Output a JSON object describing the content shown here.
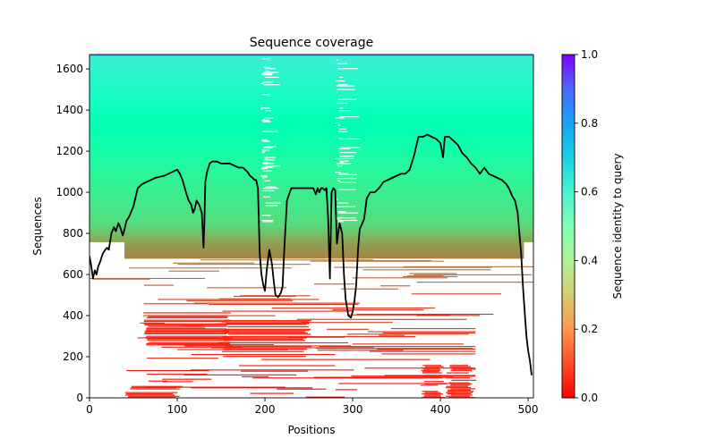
{
  "chart_data": {
    "type": "heatmap",
    "title": "Sequence coverage",
    "xlabel": "Positions",
    "ylabel": "Sequences",
    "xlim": [
      0,
      506
    ],
    "ylim": [
      0,
      1670
    ],
    "xticks": [
      "0",
      "100",
      "200",
      "300",
      "400",
      "500"
    ],
    "xtick_values": [
      0,
      100,
      200,
      300,
      400,
      500
    ],
    "yticks": [
      "0",
      "200",
      "400",
      "600",
      "800",
      "1000",
      "1200",
      "1400",
      "1600"
    ],
    "ytick_values": [
      0,
      200,
      400,
      600,
      800,
      1000,
      1200,
      1400,
      1600
    ],
    "grid": false,
    "colorbar": {
      "label": "Sequence identity to query",
      "colormap": "rainbow_r",
      "range": [
        0.0,
        1.0
      ],
      "ticks": [
        "0.0",
        "0.2",
        "0.4",
        "0.6",
        "0.8",
        "1.0"
      ],
      "tick_values": [
        0.0,
        0.2,
        0.4,
        0.6,
        0.8,
        1.0
      ]
    },
    "bands": [
      {
        "name": "high-identity-block",
        "seq_range": [
          850,
          1670
        ],
        "identity_range": [
          0.33,
          0.62
        ],
        "pos_range": [
          0,
          506
        ]
      },
      {
        "name": "mid-identity-block",
        "seq_range": [
          760,
          850
        ],
        "identity_range": [
          0.22,
          0.33
        ],
        "pos_range": [
          0,
          506
        ]
      },
      {
        "name": "orange-block",
        "seq_range": [
          680,
          760
        ],
        "identity_range": [
          0.17,
          0.22
        ],
        "pos_range": [
          40,
          495
        ]
      },
      {
        "name": "low-identity-sparse",
        "seq_range": [
          400,
          680
        ],
        "identity_range": [
          0.05,
          0.17
        ],
        "pos_range": [
          0,
          506
        ]
      },
      {
        "name": "red-fragments",
        "seq_range": [
          0,
          400
        ],
        "identity_range": [
          0.0,
          0.08
        ],
        "pos_range": [
          40,
          440
        ]
      }
    ],
    "coverage_line": {
      "name": "coverage",
      "color": "#000000",
      "x": [
        0,
        2,
        4,
        6,
        8,
        10,
        12,
        15,
        18,
        20,
        22,
        25,
        28,
        30,
        33,
        35,
        38,
        40,
        42,
        45,
        50,
        55,
        60,
        65,
        70,
        75,
        80,
        85,
        90,
        95,
        100,
        103,
        106,
        110,
        113,
        116,
        118,
        120,
        122,
        125,
        128,
        130,
        131,
        132,
        134,
        137,
        140,
        145,
        150,
        160,
        170,
        175,
        180,
        183,
        186,
        188,
        190,
        192,
        194,
        196,
        198,
        200,
        202,
        205,
        208,
        210,
        212,
        215,
        218,
        220,
        222,
        225,
        230,
        235,
        240,
        245,
        250,
        255,
        258,
        260,
        262,
        264,
        266,
        268,
        270,
        272,
        274,
        276,
        278,
        280,
        282,
        285,
        288,
        290,
        292,
        295,
        298,
        300,
        302,
        304,
        306,
        308,
        310,
        313,
        316,
        320,
        325,
        330,
        335,
        340,
        345,
        350,
        355,
        360,
        365,
        370,
        375,
        380,
        385,
        390,
        395,
        400,
        403,
        405,
        407,
        410,
        415,
        420,
        425,
        430,
        435,
        440,
        445,
        450,
        455,
        460,
        465,
        470,
        475,
        478,
        480,
        482,
        485,
        488,
        490,
        492,
        494,
        496,
        498,
        500,
        502,
        504
      ],
      "y": [
        690,
        640,
        580,
        620,
        600,
        640,
        660,
        700,
        720,
        730,
        720,
        800,
        830,
        810,
        850,
        830,
        790,
        820,
        860,
        880,
        930,
        1020,
        1040,
        1050,
        1060,
        1070,
        1075,
        1080,
        1090,
        1100,
        1110,
        1090,
        1060,
        1000,
        960,
        940,
        900,
        920,
        960,
        940,
        900,
        730,
        860,
        1050,
        1100,
        1140,
        1150,
        1150,
        1140,
        1140,
        1120,
        1120,
        1100,
        1080,
        1070,
        1060,
        1060,
        1020,
        700,
        600,
        550,
        520,
        620,
        720,
        650,
        570,
        500,
        490,
        510,
        540,
        720,
        960,
        1020,
        1020,
        1020,
        1020,
        1020,
        1020,
        990,
        1020,
        1000,
        1020,
        1020,
        1010,
        1020,
        880,
        580,
        1000,
        1020,
        1010,
        750,
        850,
        800,
        600,
        480,
        400,
        390,
        420,
        470,
        550,
        720,
        820,
        840,
        870,
        970,
        1000,
        1000,
        1020,
        1050,
        1060,
        1070,
        1080,
        1090,
        1090,
        1110,
        1180,
        1270,
        1270,
        1280,
        1270,
        1260,
        1240,
        1170,
        1270,
        1270,
        1270,
        1250,
        1230,
        1190,
        1170,
        1140,
        1120,
        1090,
        1120,
        1090,
        1080,
        1070,
        1060,
        1040,
        1020,
        1000,
        980,
        960,
        900,
        800,
        700,
        550,
        420,
        300,
        230,
        180,
        110,
        40
      ]
    }
  }
}
